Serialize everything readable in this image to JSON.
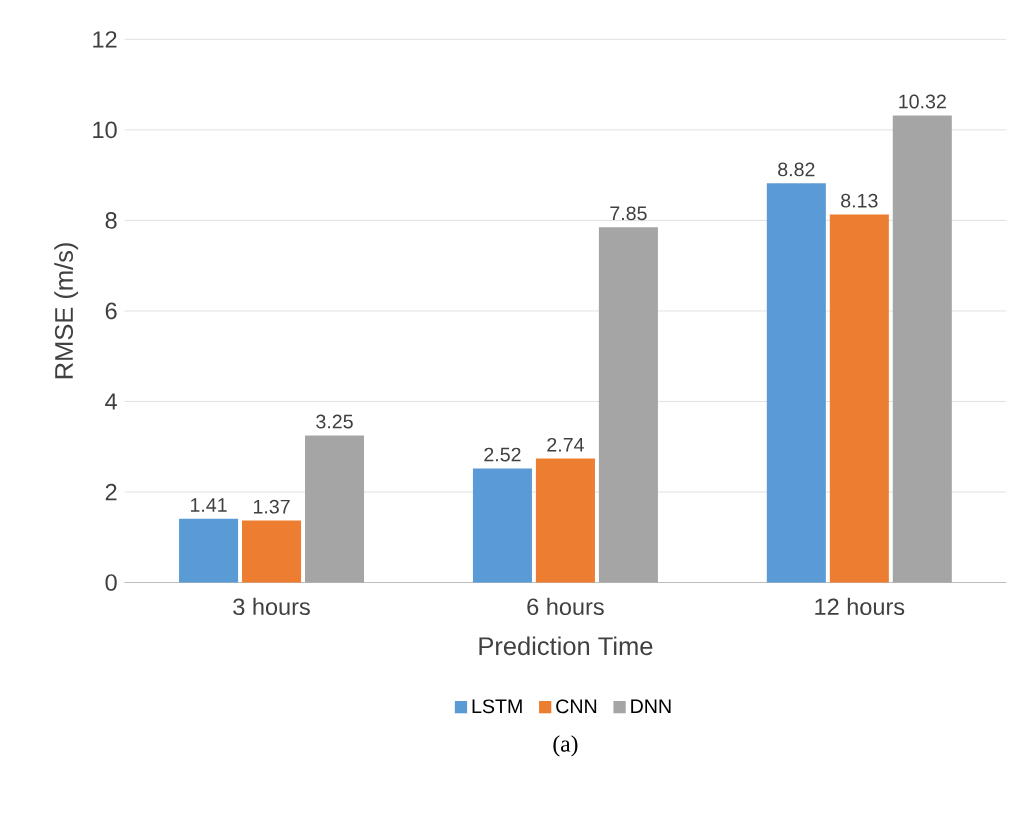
{
  "chart_data": {
    "type": "bar",
    "xlabel": "Prediction Time",
    "ylabel": "RMSE (m/s)",
    "categories": [
      "3 hours",
      "6 hours",
      "12 hours"
    ],
    "series": [
      {
        "name": "LSTM",
        "color": "#5b9bd5",
        "values": [
          1.41,
          2.52,
          8.82
        ]
      },
      {
        "name": "CNN",
        "color": "#ed7d31",
        "values": [
          1.37,
          2.74,
          8.13
        ]
      },
      {
        "name": "DNN",
        "color": "#a5a5a5",
        "values": [
          3.25,
          7.85,
          10.32
        ]
      }
    ],
    "ylim": [
      0,
      12
    ],
    "yticks": [
      0,
      2,
      4,
      6,
      8,
      10,
      12
    ],
    "grid": "y",
    "legend": "bottom",
    "data_labels": true,
    "annotations": [
      "(a)"
    ]
  }
}
